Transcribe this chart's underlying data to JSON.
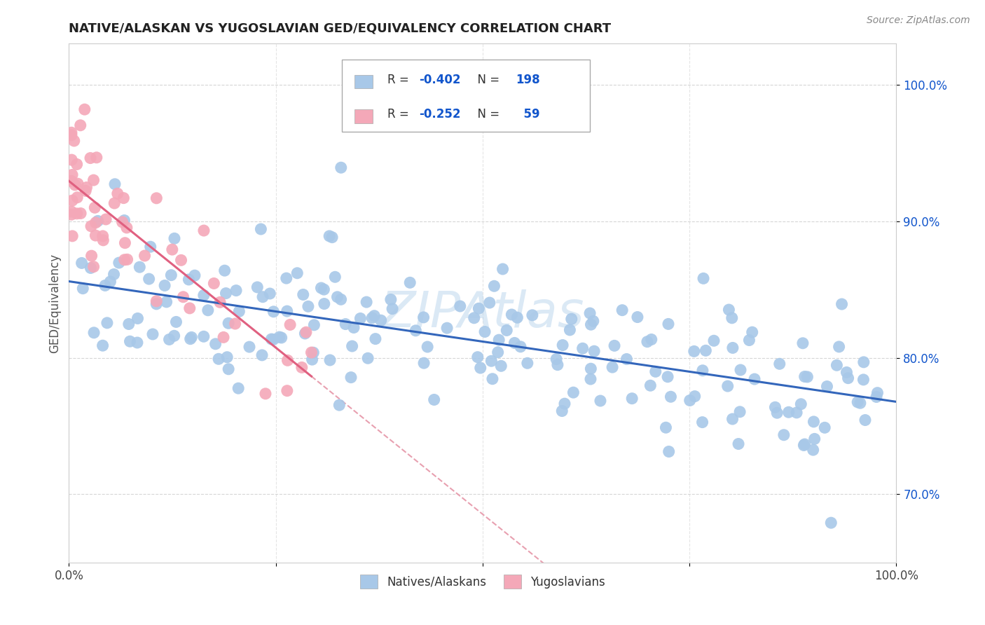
{
  "title": "NATIVE/ALASKAN VS YUGOSLAVIAN GED/EQUIVALENCY CORRELATION CHART",
  "source": "Source: ZipAtlas.com",
  "ylabel": "GED/Equivalency",
  "blue_color": "#a8c8e8",
  "pink_color": "#f4a8b8",
  "trend_blue": "#3366bb",
  "trend_pink": "#e06080",
  "trend_pink_dash": "#e8a0b0",
  "xmin": 0.0,
  "xmax": 100.0,
  "ymin": 65.0,
  "ymax": 103.0,
  "ytick_vals": [
    70,
    80,
    90,
    100
  ],
  "ytick_labels": [
    "70.0%",
    "80.0%",
    "90.0%",
    "100.0%"
  ],
  "legend_R_color": "#1155cc",
  "legend_N_color": "#1155cc",
  "legend_label_color": "#333333",
  "watermark": "ZIPAtlas",
  "watermark_color": "#b8d4ec",
  "seed_blue": 42,
  "seed_pink": 99
}
